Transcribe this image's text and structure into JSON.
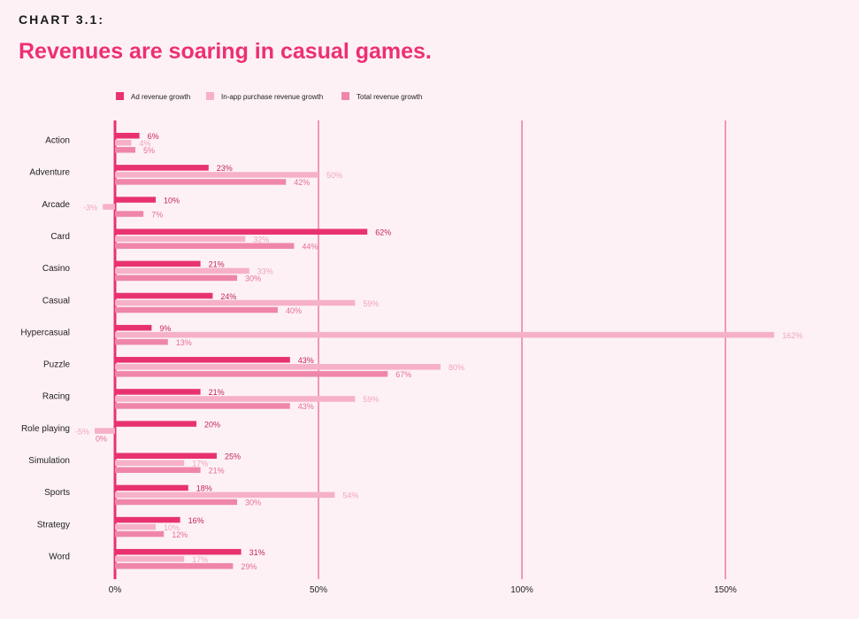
{
  "header": {
    "kicker": "CHART 3.1:",
    "title": "Revenues are soaring in casual games."
  },
  "chart_data": {
    "type": "bar",
    "orientation": "horizontal",
    "categories": [
      "Action",
      "Adventure",
      "Arcade",
      "Card",
      "Casino",
      "Casual",
      "Hypercasual",
      "Puzzle",
      "Racing",
      "Role playing",
      "Simulation",
      "Sports",
      "Strategy",
      "Word"
    ],
    "series": [
      {
        "name": "Ad revenue growth",
        "color": "#e8326e",
        "values": [
          6,
          23,
          10,
          62,
          21,
          24,
          9,
          43,
          21,
          20,
          25,
          18,
          16,
          31
        ],
        "labels": [
          "6%",
          "23%",
          "10%",
          "62%",
          "21%",
          "24%",
          "9%",
          "43%",
          "21%",
          "20%",
          "25%",
          "18%",
          "16%",
          "31%"
        ]
      },
      {
        "name": "In-app purchase revenue growth",
        "color": "#f6b1c8",
        "values": [
          4,
          50,
          -3,
          32,
          33,
          59,
          162,
          80,
          59,
          -5,
          17,
          54,
          10,
          17
        ],
        "labels": [
          "4%",
          "50%",
          "-3%",
          "32%",
          "33%",
          "59%",
          "162%",
          "80%",
          "59%",
          "-5%",
          "17%",
          "54%",
          "10%",
          "17%"
        ]
      },
      {
        "name": "Total revenue growth",
        "color": "#ef86a9",
        "values": [
          5,
          42,
          7,
          44,
          30,
          40,
          13,
          67,
          43,
          0,
          21,
          30,
          12,
          29
        ],
        "labels": [
          "5%",
          "42%",
          "7%",
          "44%",
          "30%",
          "40%",
          "13%",
          "67%",
          "43%",
          "0%",
          "21%",
          "30%",
          "12%",
          "29%"
        ]
      }
    ],
    "x_ticks": [
      0,
      50,
      100,
      150
    ],
    "x_tick_labels": [
      "0%",
      "50%",
      "100%",
      "150%"
    ],
    "xlim": [
      0,
      150
    ],
    "grid": true,
    "legend_position": "top-left"
  }
}
